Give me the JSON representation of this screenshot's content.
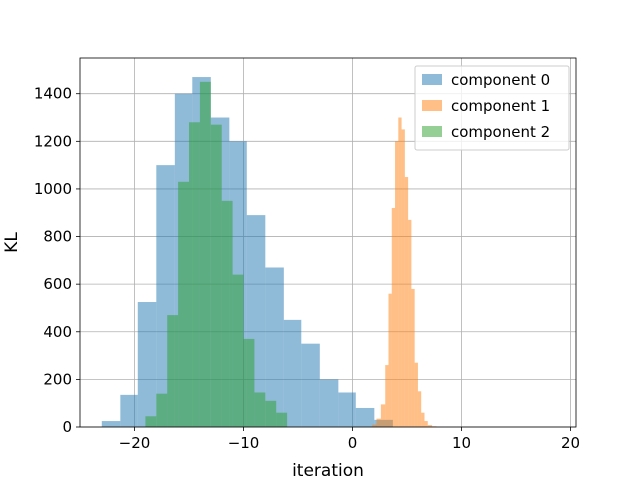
{
  "chart_data": {
    "type": "bar",
    "subtype": "histogram",
    "xlabel": "iteration",
    "ylabel": "KL",
    "xlim": [
      -25,
      20.5
    ],
    "ylim": [
      0,
      1550
    ],
    "xticks": [
      -20,
      -10,
      0,
      10,
      20
    ],
    "yticks": [
      0,
      200,
      400,
      600,
      800,
      1000,
      1200,
      1400
    ],
    "grid": true,
    "legend_position": "top-right",
    "series": [
      {
        "name": "component 0",
        "color": "#1f77b4",
        "alpha": 0.5,
        "bin_edges": [
          -23.0,
          -21.3,
          -19.7,
          -18.0,
          -16.3,
          -14.7,
          -13.0,
          -11.3,
          -9.7,
          -8.0,
          -6.3,
          -4.7,
          -3.0,
          -1.3,
          0.3,
          2.0,
          3.7
        ],
        "counts": [
          25,
          135,
          525,
          1100,
          1400,
          1470,
          1300,
          1200,
          890,
          670,
          450,
          350,
          200,
          145,
          80,
          30
        ]
      },
      {
        "name": "component 1",
        "color": "#ff7f0e",
        "alpha": 0.5,
        "bin_edges": [
          1.8,
          2.2,
          2.6,
          3.0,
          3.3,
          3.6,
          3.9,
          4.2,
          4.5,
          4.8,
          5.1,
          5.4,
          5.7,
          6.0,
          6.3,
          6.6,
          6.9,
          7.3,
          7.7
        ],
        "counts": [
          10,
          35,
          95,
          260,
          560,
          920,
          1200,
          1300,
          1250,
          1050,
          870,
          580,
          270,
          150,
          60,
          25,
          8,
          3
        ]
      },
      {
        "name": "component 2",
        "color": "#2ca02c",
        "alpha": 0.5,
        "bin_edges": [
          -19.0,
          -18.0,
          -17.0,
          -16.0,
          -15.0,
          -14.0,
          -13.0,
          -12.0,
          -11.0,
          -10.0,
          -9.0,
          -8.0,
          -7.0,
          -6.0
        ],
        "counts": [
          45,
          140,
          470,
          1030,
          1280,
          1450,
          1270,
          950,
          640,
          370,
          145,
          110,
          60
        ]
      }
    ]
  }
}
